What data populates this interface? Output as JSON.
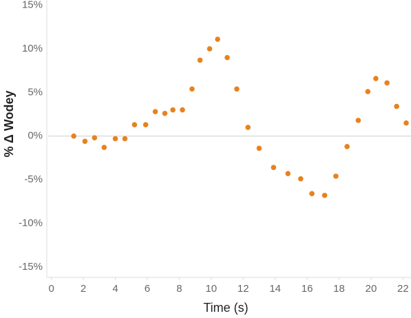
{
  "chart_data": {
    "type": "scatter",
    "x_label": "Time (s)",
    "y_label": "% Δ Wodey",
    "color": "#e8821e",
    "x": [
      1.4,
      2.1,
      2.7,
      3.3,
      4.0,
      4.6,
      5.2,
      5.9,
      6.5,
      7.1,
      7.6,
      8.2,
      8.8,
      9.3,
      9.9,
      10.4,
      11.0,
      11.6,
      12.3,
      13.0,
      13.9,
      14.8,
      15.6,
      16.3,
      17.1,
      17.8,
      18.5,
      19.2,
      19.8,
      20.3,
      21.0,
      21.6,
      22.2
    ],
    "values": [
      0,
      -0.6,
      -0.2,
      -1.3,
      -0.3,
      -0.3,
      1.3,
      1.3,
      2.8,
      2.6,
      3.0,
      3.0,
      5.4,
      8.7,
      10.0,
      11.1,
      9.0,
      5.4,
      1.0,
      -1.4,
      -3.6,
      -4.3,
      -4.9,
      -6.6,
      -6.8,
      -4.6,
      -1.2,
      1.8,
      5.1,
      6.6,
      6.1,
      3.4,
      1.5
    ],
    "xlim": [
      -0.2,
      22.5
    ],
    "xticks": [
      0,
      2,
      4,
      6,
      8,
      10,
      12,
      14,
      16,
      18,
      20,
      22
    ],
    "ylim": [
      -16.2,
      15.6
    ],
    "yticks": [
      {
        "value": -15,
        "label": "-15%"
      },
      {
        "value": -10,
        "label": "-10%"
      },
      {
        "value": -5,
        "label": "-5%"
      },
      {
        "value": 0,
        "label": "0%"
      },
      {
        "value": 5,
        "label": "5%"
      },
      {
        "value": 10,
        "label": "10%"
      },
      {
        "value": 15,
        "label": "15%"
      }
    ],
    "zero_line": true
  }
}
